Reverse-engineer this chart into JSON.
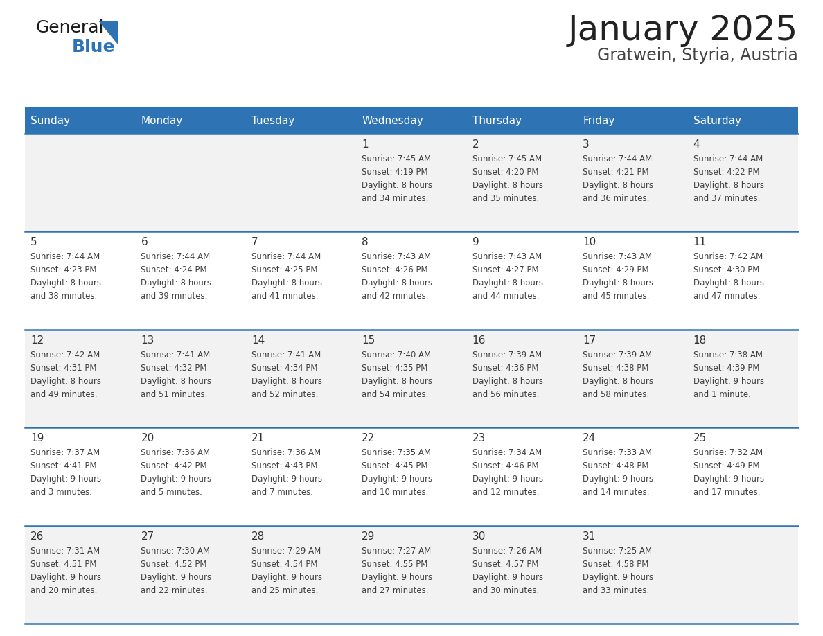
{
  "title": "January 2025",
  "subtitle": "Gratwein, Styria, Austria",
  "days_of_week": [
    "Sunday",
    "Monday",
    "Tuesday",
    "Wednesday",
    "Thursday",
    "Friday",
    "Saturday"
  ],
  "header_bg": "#2E74B5",
  "header_text": "#FFFFFF",
  "row_bg_odd": "#F2F2F2",
  "row_bg_even": "#FFFFFF",
  "divider_color": "#2E74B5",
  "cell_text_color": "#404040",
  "day_number_color": "#333333",
  "title_color": "#222222",
  "subtitle_color": "#444444",
  "logo_general_color": "#1a1a1a",
  "logo_blue_color": "#2E74B5",
  "calendar_data": [
    [
      {
        "day": "",
        "info": ""
      },
      {
        "day": "",
        "info": ""
      },
      {
        "day": "",
        "info": ""
      },
      {
        "day": "1",
        "info": "Sunrise: 7:45 AM\nSunset: 4:19 PM\nDaylight: 8 hours\nand 34 minutes."
      },
      {
        "day": "2",
        "info": "Sunrise: 7:45 AM\nSunset: 4:20 PM\nDaylight: 8 hours\nand 35 minutes."
      },
      {
        "day": "3",
        "info": "Sunrise: 7:44 AM\nSunset: 4:21 PM\nDaylight: 8 hours\nand 36 minutes."
      },
      {
        "day": "4",
        "info": "Sunrise: 7:44 AM\nSunset: 4:22 PM\nDaylight: 8 hours\nand 37 minutes."
      }
    ],
    [
      {
        "day": "5",
        "info": "Sunrise: 7:44 AM\nSunset: 4:23 PM\nDaylight: 8 hours\nand 38 minutes."
      },
      {
        "day": "6",
        "info": "Sunrise: 7:44 AM\nSunset: 4:24 PM\nDaylight: 8 hours\nand 39 minutes."
      },
      {
        "day": "7",
        "info": "Sunrise: 7:44 AM\nSunset: 4:25 PM\nDaylight: 8 hours\nand 41 minutes."
      },
      {
        "day": "8",
        "info": "Sunrise: 7:43 AM\nSunset: 4:26 PM\nDaylight: 8 hours\nand 42 minutes."
      },
      {
        "day": "9",
        "info": "Sunrise: 7:43 AM\nSunset: 4:27 PM\nDaylight: 8 hours\nand 44 minutes."
      },
      {
        "day": "10",
        "info": "Sunrise: 7:43 AM\nSunset: 4:29 PM\nDaylight: 8 hours\nand 45 minutes."
      },
      {
        "day": "11",
        "info": "Sunrise: 7:42 AM\nSunset: 4:30 PM\nDaylight: 8 hours\nand 47 minutes."
      }
    ],
    [
      {
        "day": "12",
        "info": "Sunrise: 7:42 AM\nSunset: 4:31 PM\nDaylight: 8 hours\nand 49 minutes."
      },
      {
        "day": "13",
        "info": "Sunrise: 7:41 AM\nSunset: 4:32 PM\nDaylight: 8 hours\nand 51 minutes."
      },
      {
        "day": "14",
        "info": "Sunrise: 7:41 AM\nSunset: 4:34 PM\nDaylight: 8 hours\nand 52 minutes."
      },
      {
        "day": "15",
        "info": "Sunrise: 7:40 AM\nSunset: 4:35 PM\nDaylight: 8 hours\nand 54 minutes."
      },
      {
        "day": "16",
        "info": "Sunrise: 7:39 AM\nSunset: 4:36 PM\nDaylight: 8 hours\nand 56 minutes."
      },
      {
        "day": "17",
        "info": "Sunrise: 7:39 AM\nSunset: 4:38 PM\nDaylight: 8 hours\nand 58 minutes."
      },
      {
        "day": "18",
        "info": "Sunrise: 7:38 AM\nSunset: 4:39 PM\nDaylight: 9 hours\nand 1 minute."
      }
    ],
    [
      {
        "day": "19",
        "info": "Sunrise: 7:37 AM\nSunset: 4:41 PM\nDaylight: 9 hours\nand 3 minutes."
      },
      {
        "day": "20",
        "info": "Sunrise: 7:36 AM\nSunset: 4:42 PM\nDaylight: 9 hours\nand 5 minutes."
      },
      {
        "day": "21",
        "info": "Sunrise: 7:36 AM\nSunset: 4:43 PM\nDaylight: 9 hours\nand 7 minutes."
      },
      {
        "day": "22",
        "info": "Sunrise: 7:35 AM\nSunset: 4:45 PM\nDaylight: 9 hours\nand 10 minutes."
      },
      {
        "day": "23",
        "info": "Sunrise: 7:34 AM\nSunset: 4:46 PM\nDaylight: 9 hours\nand 12 minutes."
      },
      {
        "day": "24",
        "info": "Sunrise: 7:33 AM\nSunset: 4:48 PM\nDaylight: 9 hours\nand 14 minutes."
      },
      {
        "day": "25",
        "info": "Sunrise: 7:32 AM\nSunset: 4:49 PM\nDaylight: 9 hours\nand 17 minutes."
      }
    ],
    [
      {
        "day": "26",
        "info": "Sunrise: 7:31 AM\nSunset: 4:51 PM\nDaylight: 9 hours\nand 20 minutes."
      },
      {
        "day": "27",
        "info": "Sunrise: 7:30 AM\nSunset: 4:52 PM\nDaylight: 9 hours\nand 22 minutes."
      },
      {
        "day": "28",
        "info": "Sunrise: 7:29 AM\nSunset: 4:54 PM\nDaylight: 9 hours\nand 25 minutes."
      },
      {
        "day": "29",
        "info": "Sunrise: 7:27 AM\nSunset: 4:55 PM\nDaylight: 9 hours\nand 27 minutes."
      },
      {
        "day": "30",
        "info": "Sunrise: 7:26 AM\nSunset: 4:57 PM\nDaylight: 9 hours\nand 30 minutes."
      },
      {
        "day": "31",
        "info": "Sunrise: 7:25 AM\nSunset: 4:58 PM\nDaylight: 9 hours\nand 33 minutes."
      },
      {
        "day": "",
        "info": ""
      }
    ]
  ]
}
